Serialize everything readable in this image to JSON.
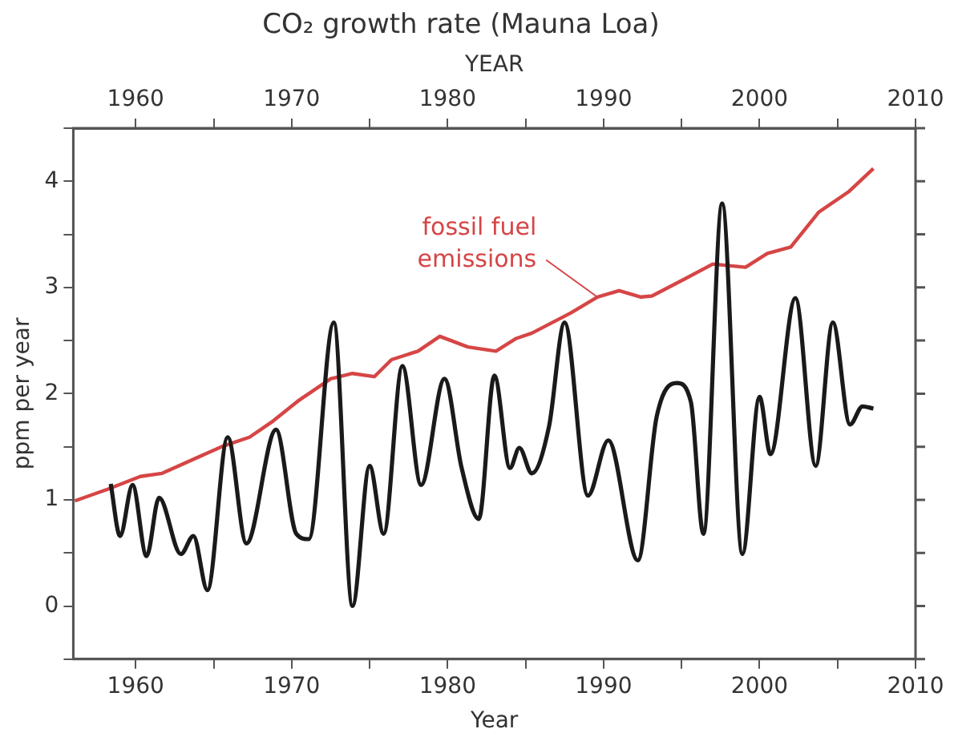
{
  "chart_data": {
    "type": "line",
    "title": "CO₂ growth rate (Mauna Loa)",
    "xlabel": "Year",
    "x2label": "YEAR",
    "ylabel": "ppm per year",
    "xlim": [
      1956,
      2010
    ],
    "xticks": [
      1960,
      {
        "value": 1965,
        "label": null
      },
      1970,
      {
        "value": 1975,
        "label": null
      },
      1980,
      {
        "value": 1985,
        "label": null
      },
      1990,
      {
        "value": 1995,
        "label": null
      },
      2000,
      {
        "value": 2005,
        "label": null
      },
      2010
    ],
    "x2lim": [
      1956,
      2010
    ],
    "x2ticks": [
      1960,
      {
        "value": 1965,
        "label": null
      },
      1970,
      {
        "value": 1975,
        "label": null
      },
      1980,
      {
        "value": 1985,
        "label": null
      },
      1990,
      {
        "value": 1995,
        "label": null
      },
      2000,
      {
        "value": 2005,
        "label": null
      },
      2010
    ],
    "ylim": [
      -0.5,
      4.5
    ],
    "yticks": [
      {
        "value": -0.5,
        "label": null
      },
      0,
      {
        "value": 0.5,
        "label": null
      },
      1,
      {
        "value": 1.5,
        "label": null
      },
      2,
      {
        "value": 2.5,
        "label": null
      },
      3,
      {
        "value": 3.5,
        "label": null
      },
      4,
      {
        "value": 4.5,
        "label": null
      }
    ],
    "grid": false,
    "legend": false,
    "marker": "none",
    "line_style": "solid",
    "series": [
      {
        "color": "#1a1a1a",
        "x": [
          1958.4,
          1959.0,
          1959.8,
          1960.7,
          1961.5,
          1962.9,
          1963.7,
          1964.6,
          1965.9,
          1967.1,
          1969.0,
          1970.3,
          1971.1,
          1972.7,
          1973.9,
          1975.0,
          1975.9,
          1977.1,
          1978.3,
          1979.8,
          1980.9,
          1982.0,
          1983.0,
          1984.0,
          1984.6,
          1985.4,
          1986.5,
          1987.5,
          1989.0,
          1990.3,
          1992.2,
          1993.4,
          1994.7,
          1995.6,
          1996.4,
          1997.6,
          1998.9,
          2000.0,
          2000.7,
          2002.3,
          2003.6,
          2004.7,
          2005.8,
          2006.6,
          2007.3
        ],
        "values": [
          1.15,
          0.66,
          1.14,
          0.47,
          1.02,
          0.49,
          0.66,
          0.15,
          1.59,
          0.59,
          1.66,
          0.68,
          0.63,
          2.67,
          0.0,
          1.32,
          0.68,
          2.26,
          1.14,
          2.14,
          1.3,
          0.82,
          2.17,
          1.3,
          1.49,
          1.25,
          1.69,
          2.67,
          1.04,
          1.56,
          0.43,
          1.78,
          2.1,
          1.92,
          0.68,
          3.79,
          0.49,
          1.97,
          1.43,
          2.9,
          1.32,
          2.67,
          1.71,
          1.88,
          1.86
        ]
      },
      {
        "name": "fossil fuel emissions",
        "color": "#d64545",
        "x": [
          1956.1,
          1958.2,
          1960.3,
          1961.7,
          1965.5,
          1967.3,
          1968.7,
          1970.4,
          1972.5,
          1973.9,
          1975.3,
          1976.4,
          1978.1,
          1979.5,
          1981.3,
          1983.1,
          1984.4,
          1985.4,
          1987.9,
          1989.6,
          1991.0,
          1992.4,
          1993.1,
          1995.2,
          1997.0,
          1999.1,
          2000.5,
          2002.0,
          2003.8,
          2005.7,
          2007.3
        ],
        "values": [
          0.99,
          1.1,
          1.22,
          1.25,
          1.5,
          1.59,
          1.73,
          1.93,
          2.14,
          2.19,
          2.16,
          2.32,
          2.4,
          2.54,
          2.44,
          2.4,
          2.52,
          2.57,
          2.76,
          2.91,
          2.97,
          2.91,
          2.92,
          3.08,
          3.22,
          3.19,
          3.32,
          3.38,
          3.71,
          3.9,
          4.12
        ]
      }
    ]
  }
}
